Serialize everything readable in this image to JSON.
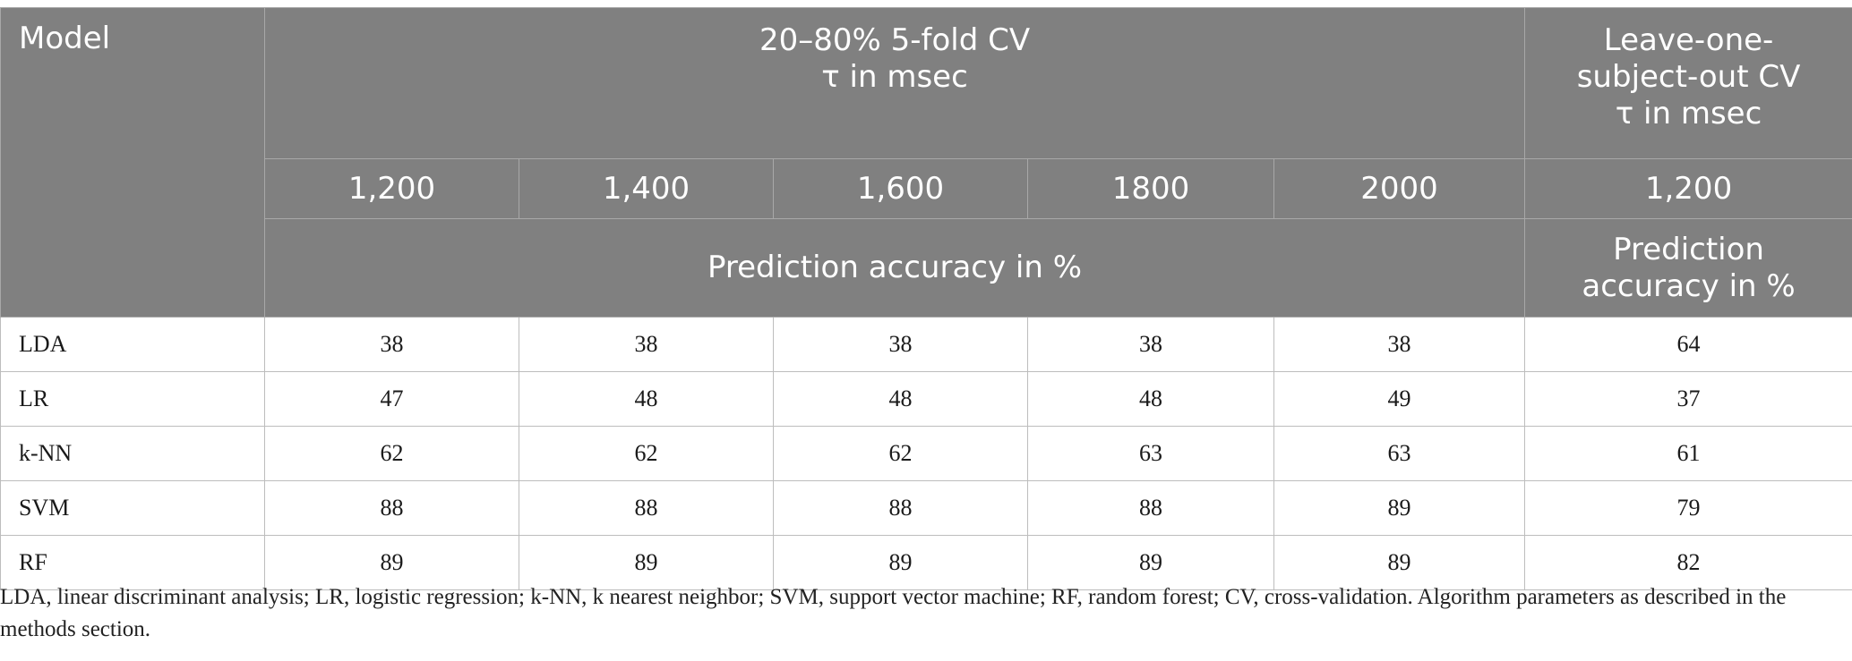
{
  "header": {
    "model_label": "Model",
    "cv_title_line1": "20–80% 5-fold CV",
    "cv_title_line2": "τ in msec",
    "loso_title_line1": "Leave-one-",
    "loso_title_line2": "subject-out CV",
    "loso_title_line3": "τ in msec",
    "taus": [
      "1,200",
      "1,400",
      "1,600",
      "1800",
      "2000"
    ],
    "loso_tau": "1,200",
    "accuracy_label": "Prediction accuracy in %",
    "loso_accuracy_line1": "Prediction",
    "loso_accuracy_line2": "accuracy in %"
  },
  "rows": [
    {
      "model": "LDA",
      "values": [
        "38",
        "38",
        "38",
        "38",
        "38"
      ],
      "loso": "64"
    },
    {
      "model": "LR",
      "values": [
        "47",
        "48",
        "48",
        "48",
        "49"
      ],
      "loso": "37"
    },
    {
      "model": "k-NN",
      "values": [
        "62",
        "62",
        "62",
        "63",
        "63"
      ],
      "loso": "61"
    },
    {
      "model": "SVM",
      "values": [
        "88",
        "88",
        "88",
        "88",
        "89"
      ],
      "loso": "79"
    },
    {
      "model": "RF",
      "values": [
        "89",
        "89",
        "89",
        "89",
        "89"
      ],
      "loso": "82"
    }
  ],
  "footnote": "LDA, linear discriminant analysis; LR, logistic regression; k-NN, k nearest neighbor; SVM, support vector machine; RF, random forest; CV, cross-validation. Algorithm parameters as described in the methods section."
}
